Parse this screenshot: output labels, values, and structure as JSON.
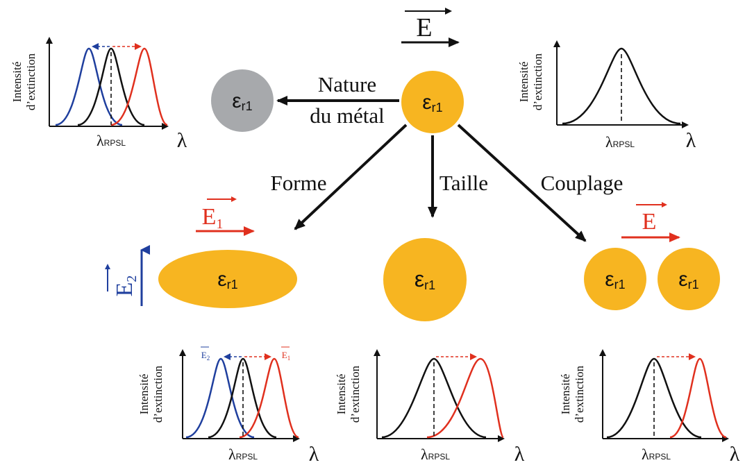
{
  "colors": {
    "gold": "#F7B521",
    "grey": "#A7A9AC",
    "red": "#E0301E",
    "blue": "#1F3F9E",
    "black": "#111111"
  },
  "symbols": {
    "epsilon": "εr1",
    "field_E": "E",
    "field_E1": "E1",
    "field_E2": "E2"
  },
  "labels": {
    "nature_line1": "Nature",
    "nature_line2": "du métal",
    "forme": "Forme",
    "taille": "Taille",
    "couplage": "Couplage"
  },
  "axes": {
    "ylabel_line1": "Intensité",
    "ylabel_line2": "d’extinction",
    "x_tick": "λRPSL",
    "x_axis": "λ"
  },
  "icons": [
    "arrow-right-icon",
    "arrow-up-icon",
    "arrow-left-icon"
  ]
}
